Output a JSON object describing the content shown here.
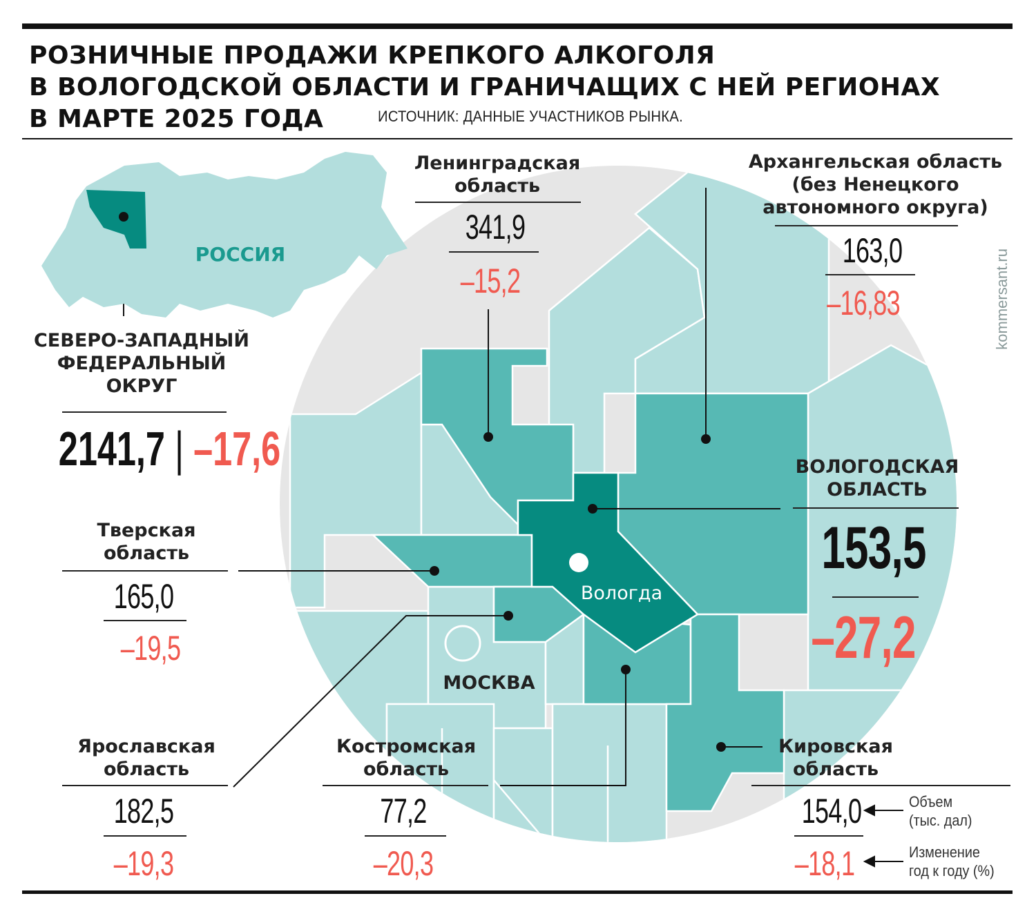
{
  "title_lines": [
    "РОЗНИЧНЫЕ ПРОДАЖИ КРЕПКОГО АЛКОГОЛЯ",
    "В ВОЛОГОДСКОЙ ОБЛАСТИ И ГРАНИЧАЩИХ С НЕЙ РЕГИОНАХ",
    "В МАРТЕ 2025 ГОДА"
  ],
  "source": "ИСТОЧНИК: ДАННЫЕ УЧАСТНИКОВ РЫНКА.",
  "watermark": "kommersant.ru",
  "inset": {
    "country": "РОССИЯ"
  },
  "map_labels": {
    "capital": "Вологда",
    "moscow": "МОСКВА"
  },
  "colors": {
    "light_region": "#b3dedd",
    "medium_region": "#57b9b4",
    "dark_region": "#068b80",
    "background_land": "#e6e6e6",
    "change_red": "#f05a50"
  },
  "regions": {
    "nwfd": {
      "name": [
        "СЕВЕРО-ЗАПАДНЫЙ",
        "ФЕДЕРАЛЬНЫЙ",
        "ОКРУГ"
      ],
      "volume": "2141,7",
      "separator": "|",
      "change": "–17,6"
    },
    "leningrad": {
      "name": [
        "Ленинградская",
        "область"
      ],
      "volume": "341,9",
      "change": "–15,2"
    },
    "arkhangelsk": {
      "name": [
        "Архангельская область",
        "(без Ненецкого",
        "автономного округа)"
      ],
      "volume": "163,0",
      "change": "–16,83"
    },
    "vologda": {
      "name": [
        "ВОЛОГОДСКАЯ",
        "ОБЛАСТЬ"
      ],
      "volume": "153,5",
      "change": "–27,2"
    },
    "tver": {
      "name": [
        "Тверская",
        "область"
      ],
      "volume": "165,0",
      "change": "–19,5"
    },
    "yaroslavl": {
      "name": [
        "Ярославская",
        "область"
      ],
      "volume": "182,5",
      "change": "–19,3"
    },
    "kostroma": {
      "name": [
        "Костромская",
        "область"
      ],
      "volume": "77,2",
      "change": "–20,3"
    },
    "kirov": {
      "name": [
        "Кировская",
        "область"
      ],
      "volume": "154,0",
      "change": "–18,1"
    }
  },
  "legend": {
    "volume": [
      "Объем",
      "(тыс. дал)"
    ],
    "change": [
      "Изменение",
      "год к году (%)"
    ]
  }
}
